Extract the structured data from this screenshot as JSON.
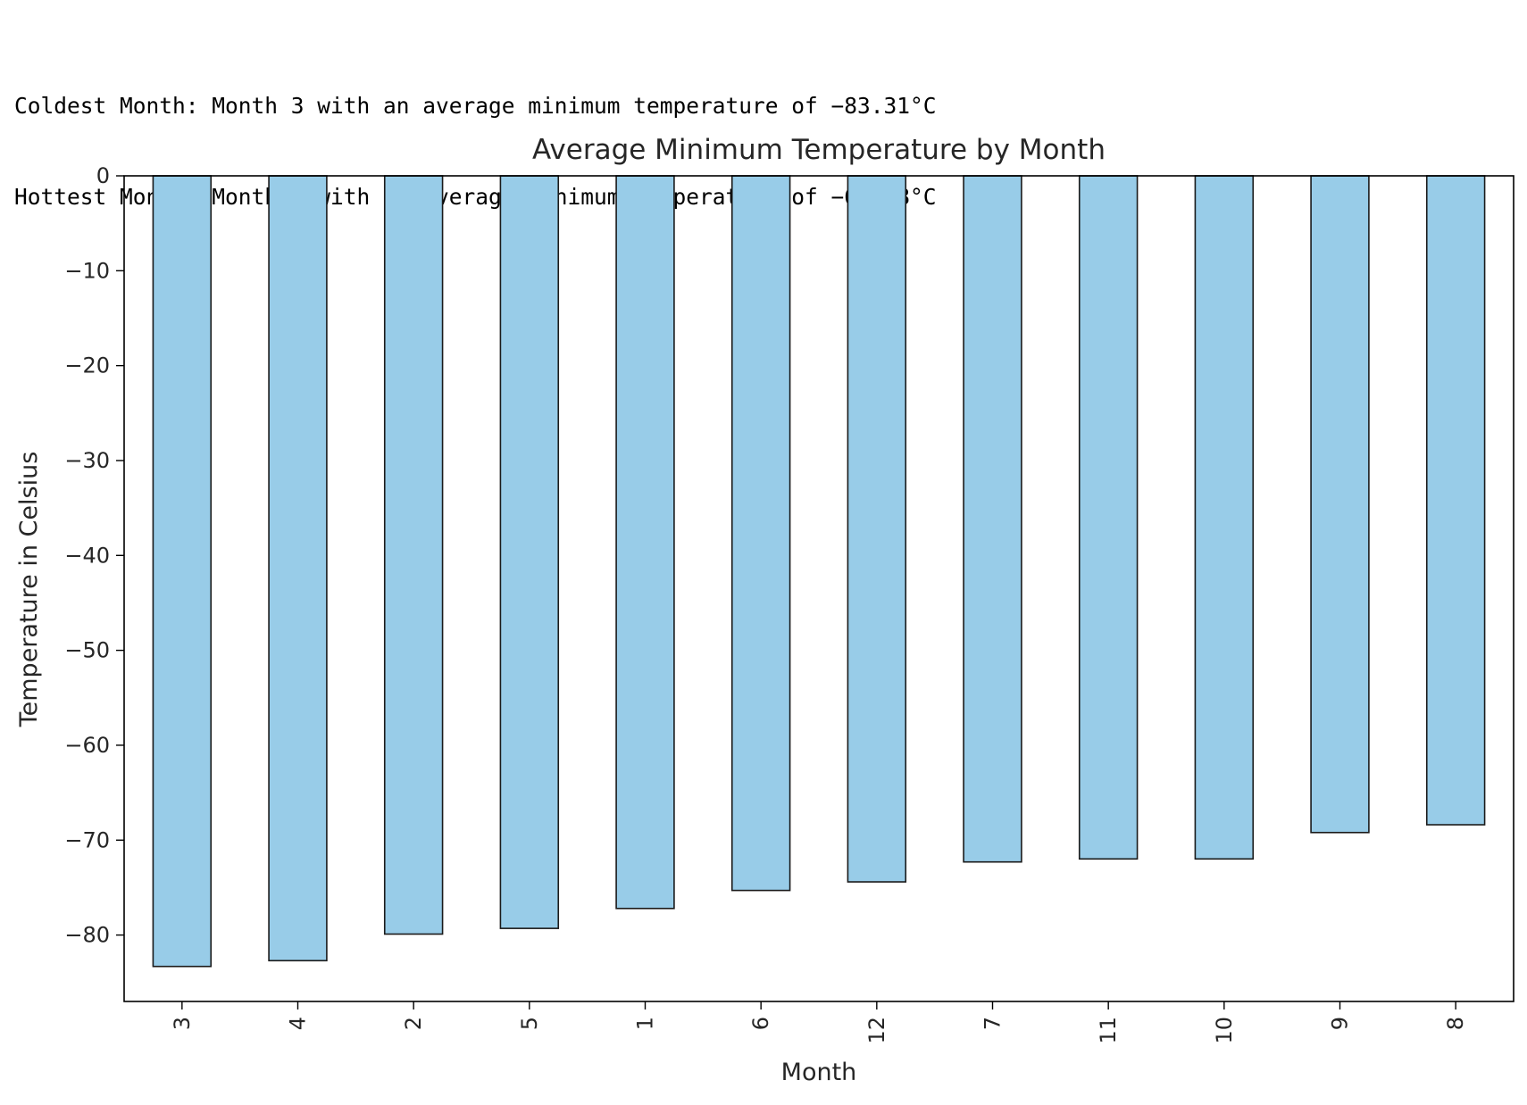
{
  "output": {
    "lines": [
      "Coldest Month: Month 3 with an average minimum temperature of −83.31°C",
      "Hottest Month: Month 8 with an average minimum temperature of −68.38°C"
    ]
  },
  "chart_data": {
    "type": "bar",
    "title": "Average Minimum Temperature by Month",
    "xlabel": "Month",
    "ylabel": "Temperature in Celsius",
    "categories": [
      "3",
      "4",
      "2",
      "5",
      "1",
      "6",
      "12",
      "7",
      "11",
      "10",
      "9",
      "8"
    ],
    "values": [
      -83.31,
      -82.7,
      -79.9,
      -79.3,
      -77.2,
      -75.3,
      -74.4,
      -72.3,
      -71.98,
      -71.98,
      -69.2,
      -68.38
    ],
    "ylim": [
      -87,
      0
    ],
    "yticks": [
      0,
      -10,
      -20,
      -30,
      -40,
      -50,
      -60,
      -70,
      -80
    ],
    "ytick_labels": [
      "0",
      "−10",
      "−20",
      "−30",
      "−40",
      "−50",
      "−60",
      "−70",
      "−80"
    ],
    "grid": false,
    "bar_color": "#98cce8",
    "edge_color": "#1a1a1a"
  }
}
